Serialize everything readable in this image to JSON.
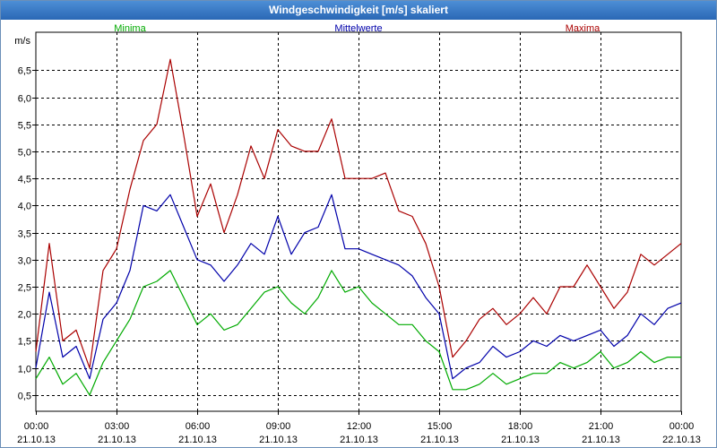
{
  "window": {
    "title": "Windgeschwindigkeit [m/s] skaliert"
  },
  "chart_data": {
    "type": "line",
    "title": "Windgeschwindigkeit [m/s] skaliert",
    "ylabel": "m/s",
    "ylim": [
      0.2,
      7.2
    ],
    "xlim": [
      0,
      24
    ],
    "grid": true,
    "legend_placement": "top",
    "yticks": [
      "0,5",
      "1,0",
      "1,5",
      "2,0",
      "2,5",
      "3,0",
      "3,5",
      "4,0",
      "4,5",
      "5,0",
      "5,5",
      "6,0",
      "6,5"
    ],
    "ytick_values": [
      0.5,
      1.0,
      1.5,
      2.0,
      2.5,
      3.0,
      3.5,
      4.0,
      4.5,
      5.0,
      5.5,
      6.0,
      6.5
    ],
    "xticks": [
      {
        "time": "00:00",
        "date": "21.10.13"
      },
      {
        "time": "03:00",
        "date": "21.10.13"
      },
      {
        "time": "06:00",
        "date": "21.10.13"
      },
      {
        "time": "09:00",
        "date": "21.10.13"
      },
      {
        "time": "12:00",
        "date": "21.10.13"
      },
      {
        "time": "15:00",
        "date": "21.10.13"
      },
      {
        "time": "18:00",
        "date": "21.10.13"
      },
      {
        "time": "21:00",
        "date": "21.10.13"
      },
      {
        "time": "00:00",
        "date": "22.10.13"
      }
    ],
    "x": [
      0,
      0.5,
      1,
      1.5,
      2,
      2.5,
      3,
      3.5,
      4,
      4.5,
      5,
      5.5,
      6,
      6.5,
      7,
      7.5,
      8,
      8.5,
      9,
      9.5,
      10,
      10.5,
      11,
      11.5,
      12,
      12.5,
      13,
      13.5,
      14,
      14.5,
      15,
      15.5,
      16,
      16.5,
      17,
      17.5,
      18,
      18.5,
      19,
      19.5,
      20,
      20.5,
      21,
      21.5,
      22,
      22.5,
      23,
      23.5,
      24
    ],
    "series": [
      {
        "name": "Minima",
        "color": "#00aa00",
        "values": [
          0.8,
          1.2,
          0.7,
          0.9,
          0.5,
          1.1,
          1.5,
          1.9,
          2.5,
          2.6,
          2.8,
          2.3,
          1.8,
          2.0,
          1.7,
          1.8,
          2.1,
          2.4,
          2.5,
          2.2,
          2.0,
          2.3,
          2.8,
          2.4,
          2.5,
          2.2,
          2.0,
          1.8,
          1.8,
          1.5,
          1.3,
          0.6,
          0.6,
          0.7,
          0.9,
          0.7,
          0.8,
          0.9,
          0.9,
          1.1,
          1.0,
          1.1,
          1.3,
          1.0,
          1.1,
          1.3,
          1.1,
          1.2,
          1.2
        ]
      },
      {
        "name": "Mittelwerte",
        "color": "#0000aa",
        "values": [
          1.0,
          2.4,
          1.2,
          1.4,
          0.8,
          1.9,
          2.2,
          2.8,
          4.0,
          3.9,
          4.2,
          3.6,
          3.0,
          2.9,
          2.6,
          2.9,
          3.3,
          3.1,
          3.8,
          3.1,
          3.5,
          3.6,
          4.2,
          3.2,
          3.2,
          3.1,
          3.0,
          2.9,
          2.7,
          2.3,
          2.0,
          0.8,
          1.0,
          1.1,
          1.4,
          1.2,
          1.3,
          1.5,
          1.4,
          1.6,
          1.5,
          1.6,
          1.7,
          1.4,
          1.6,
          2.0,
          1.8,
          2.1,
          2.2
        ]
      },
      {
        "name": "Maxima",
        "color": "#aa0000",
        "values": [
          1.3,
          3.3,
          1.5,
          1.7,
          1.0,
          2.8,
          3.2,
          4.3,
          5.2,
          5.5,
          6.7,
          5.3,
          3.8,
          4.4,
          3.5,
          4.2,
          5.1,
          4.5,
          5.4,
          5.1,
          5.0,
          5.0,
          5.6,
          4.5,
          4.5,
          4.5,
          4.6,
          3.9,
          3.8,
          3.3,
          2.5,
          1.2,
          1.5,
          1.9,
          2.1,
          1.8,
          2.0,
          2.3,
          2.0,
          2.5,
          2.5,
          2.9,
          2.5,
          2.1,
          2.4,
          3.1,
          2.9,
          3.1,
          3.3
        ]
      }
    ]
  }
}
